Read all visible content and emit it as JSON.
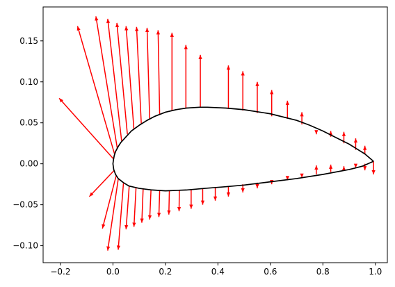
{
  "chart_data": {
    "type": "line",
    "title": "",
    "xlabel": "",
    "ylabel": "",
    "xlim": [
      -0.2661,
      1.0457
    ],
    "ylim": [
      -0.1207,
      0.1914
    ],
    "xticks": [
      -0.2,
      0.0,
      0.2,
      0.4,
      0.6,
      0.8,
      1.0
    ],
    "yticks": [
      -0.1,
      -0.05,
      0.0,
      0.05,
      0.1,
      0.15
    ],
    "xtick_labels": [
      "−0.2",
      "0.0",
      "0.2",
      "0.4",
      "0.6",
      "0.8",
      "1.0"
    ],
    "ytick_labels": [
      "−0.10",
      "−0.05",
      "0.00",
      "0.05",
      "0.10",
      "0.15"
    ],
    "grid": false,
    "legend": "none",
    "colors": {
      "airfoil": "#000000",
      "vectors": "#ff0000",
      "frame": "#000000"
    },
    "airfoil": {
      "upper": [
        [
          0.993,
          0.003
        ],
        [
          0.96,
          0.012
        ],
        [
          0.93,
          0.018
        ],
        [
          0.9,
          0.024
        ],
        [
          0.85,
          0.032
        ],
        [
          0.8,
          0.04
        ],
        [
          0.75,
          0.047
        ],
        [
          0.7,
          0.053
        ],
        [
          0.6,
          0.061
        ],
        [
          0.5,
          0.066
        ],
        [
          0.43,
          0.068
        ],
        [
          0.36,
          0.069
        ],
        [
          0.33,
          0.069
        ],
        [
          0.28,
          0.068
        ],
        [
          0.24,
          0.066
        ],
        [
          0.2,
          0.063
        ],
        [
          0.16,
          0.058
        ],
        [
          0.13,
          0.053
        ],
        [
          0.1,
          0.047
        ],
        [
          0.07,
          0.04
        ],
        [
          0.05,
          0.033
        ],
        [
          0.03,
          0.026
        ],
        [
          0.02,
          0.021
        ],
        [
          0.01,
          0.015
        ],
        [
          0.005,
          0.01
        ],
        [
          0.002,
          0.005
        ],
        [
          0.0,
          0.0
        ]
      ],
      "lower": [
        [
          0.0,
          0.0
        ],
        [
          0.003,
          -0.007
        ],
        [
          0.01,
          -0.013
        ],
        [
          0.02,
          -0.018
        ],
        [
          0.04,
          -0.023
        ],
        [
          0.06,
          -0.027
        ],
        [
          0.1,
          -0.03
        ],
        [
          0.15,
          -0.032
        ],
        [
          0.2,
          -0.033
        ],
        [
          0.28,
          -0.032
        ],
        [
          0.35,
          -0.03
        ],
        [
          0.43,
          -0.028
        ],
        [
          0.5,
          -0.026
        ],
        [
          0.6,
          -0.022
        ],
        [
          0.7,
          -0.018
        ],
        [
          0.8,
          -0.013
        ],
        [
          0.9,
          -0.007
        ],
        [
          0.95,
          -0.003
        ],
        [
          0.993,
          0.003
        ]
      ]
    },
    "vectors": [
      {
        "x0": 0.002,
        "y0": 0.006,
        "x1": -0.205,
        "y1": 0.08
      },
      {
        "x0": 0.006,
        "y0": 0.012,
        "x1": -0.135,
        "y1": 0.168
      },
      {
        "x0": 0.017,
        "y0": 0.018,
        "x1": -0.065,
        "y1": 0.18
      },
      {
        "x0": 0.033,
        "y0": 0.028,
        "x1": -0.02,
        "y1": 0.177
      },
      {
        "x0": 0.055,
        "y0": 0.036,
        "x1": 0.015,
        "y1": 0.172
      },
      {
        "x0": 0.08,
        "y0": 0.042,
        "x1": 0.05,
        "y1": 0.168
      },
      {
        "x0": 0.108,
        "y0": 0.049,
        "x1": 0.09,
        "y1": 0.167
      },
      {
        "x0": 0.14,
        "y0": 0.054,
        "x1": 0.13,
        "y1": 0.166
      },
      {
        "x0": 0.178,
        "y0": 0.06,
        "x1": 0.172,
        "y1": 0.163
      },
      {
        "x0": 0.225,
        "y0": 0.065,
        "x1": 0.225,
        "y1": 0.16
      },
      {
        "x0": 0.278,
        "y0": 0.068,
        "x1": 0.278,
        "y1": 0.145
      },
      {
        "x0": 0.333,
        "y0": 0.069,
        "x1": 0.333,
        "y1": 0.133
      },
      {
        "x0": 0.44,
        "y0": 0.067,
        "x1": 0.44,
        "y1": 0.12
      },
      {
        "x0": 0.495,
        "y0": 0.065,
        "x1": 0.495,
        "y1": 0.113
      },
      {
        "x0": 0.55,
        "y0": 0.062,
        "x1": 0.55,
        "y1": 0.1
      },
      {
        "x0": 0.605,
        "y0": 0.058,
        "x1": 0.605,
        "y1": 0.09
      },
      {
        "x0": 0.665,
        "y0": 0.055,
        "x1": 0.665,
        "y1": 0.077
      },
      {
        "x0": 0.72,
        "y0": 0.048,
        "x1": 0.72,
        "y1": 0.063
      },
      {
        "x0": 0.775,
        "y0": 0.038,
        "x1": 0.775,
        "y1": 0.036
      },
      {
        "x0": 0.83,
        "y0": 0.033,
        "x1": 0.83,
        "y1": 0.04
      },
      {
        "x0": 0.88,
        "y0": 0.025,
        "x1": 0.88,
        "y1": 0.039
      },
      {
        "x0": 0.925,
        "y0": 0.017,
        "x1": 0.925,
        "y1": 0.031
      },
      {
        "x0": 0.96,
        "y0": 0.012,
        "x1": 0.96,
        "y1": 0.022
      },
      {
        "x0": 0.005,
        "y0": -0.008,
        "x1": -0.09,
        "y1": -0.04
      },
      {
        "x0": 0.012,
        "y0": -0.015,
        "x1": -0.04,
        "y1": -0.079
      },
      {
        "x0": 0.02,
        "y0": -0.019,
        "x1": -0.02,
        "y1": -0.106
      },
      {
        "x0": 0.04,
        "y0": -0.024,
        "x1": 0.02,
        "y1": -0.105
      },
      {
        "x0": 0.062,
        "y0": -0.027,
        "x1": 0.05,
        "y1": -0.08
      },
      {
        "x0": 0.088,
        "y0": -0.029,
        "x1": 0.08,
        "y1": -0.077
      },
      {
        "x0": 0.115,
        "y0": -0.031,
        "x1": 0.11,
        "y1": -0.072
      },
      {
        "x0": 0.145,
        "y0": -0.032,
        "x1": 0.14,
        "y1": -0.068
      },
      {
        "x0": 0.178,
        "y0": -0.033,
        "x1": 0.175,
        "y1": -0.065
      },
      {
        "x0": 0.215,
        "y0": -0.033,
        "x1": 0.213,
        "y1": -0.062
      },
      {
        "x0": 0.253,
        "y0": -0.032,
        "x1": 0.252,
        "y1": -0.058
      },
      {
        "x0": 0.298,
        "y0": -0.032,
        "x1": 0.298,
        "y1": -0.055
      },
      {
        "x0": 0.342,
        "y0": -0.03,
        "x1": 0.342,
        "y1": -0.05
      },
      {
        "x0": 0.39,
        "y0": -0.029,
        "x1": 0.39,
        "y1": -0.045
      },
      {
        "x0": 0.44,
        "y0": -0.027,
        "x1": 0.44,
        "y1": -0.04
      },
      {
        "x0": 0.495,
        "y0": -0.025,
        "x1": 0.495,
        "y1": -0.035
      },
      {
        "x0": 0.55,
        "y0": -0.023,
        "x1": 0.55,
        "y1": -0.03
      },
      {
        "x0": 0.605,
        "y0": -0.021,
        "x1": 0.605,
        "y1": -0.025
      },
      {
        "x0": 0.665,
        "y0": -0.018,
        "x1": 0.665,
        "y1": -0.02
      },
      {
        "x0": 0.72,
        "y0": -0.016,
        "x1": 0.72,
        "y1": -0.017
      },
      {
        "x0": 0.775,
        "y0": -0.013,
        "x1": 0.775,
        "y1": -0.002
      },
      {
        "x0": 0.83,
        "y0": -0.01,
        "x1": 0.83,
        "y1": -0.001
      },
      {
        "x0": 0.88,
        "y0": -0.007,
        "x1": 0.88,
        "y1": -0.003
      },
      {
        "x0": 0.925,
        "y0": -0.004,
        "x1": 0.925,
        "y1": -0.005
      },
      {
        "x0": 0.96,
        "y0": 0.0,
        "x1": 0.96,
        "y1": -0.008
      },
      {
        "x0": 0.993,
        "y0": 0.003,
        "x1": 0.993,
        "y1": -0.013
      }
    ]
  }
}
